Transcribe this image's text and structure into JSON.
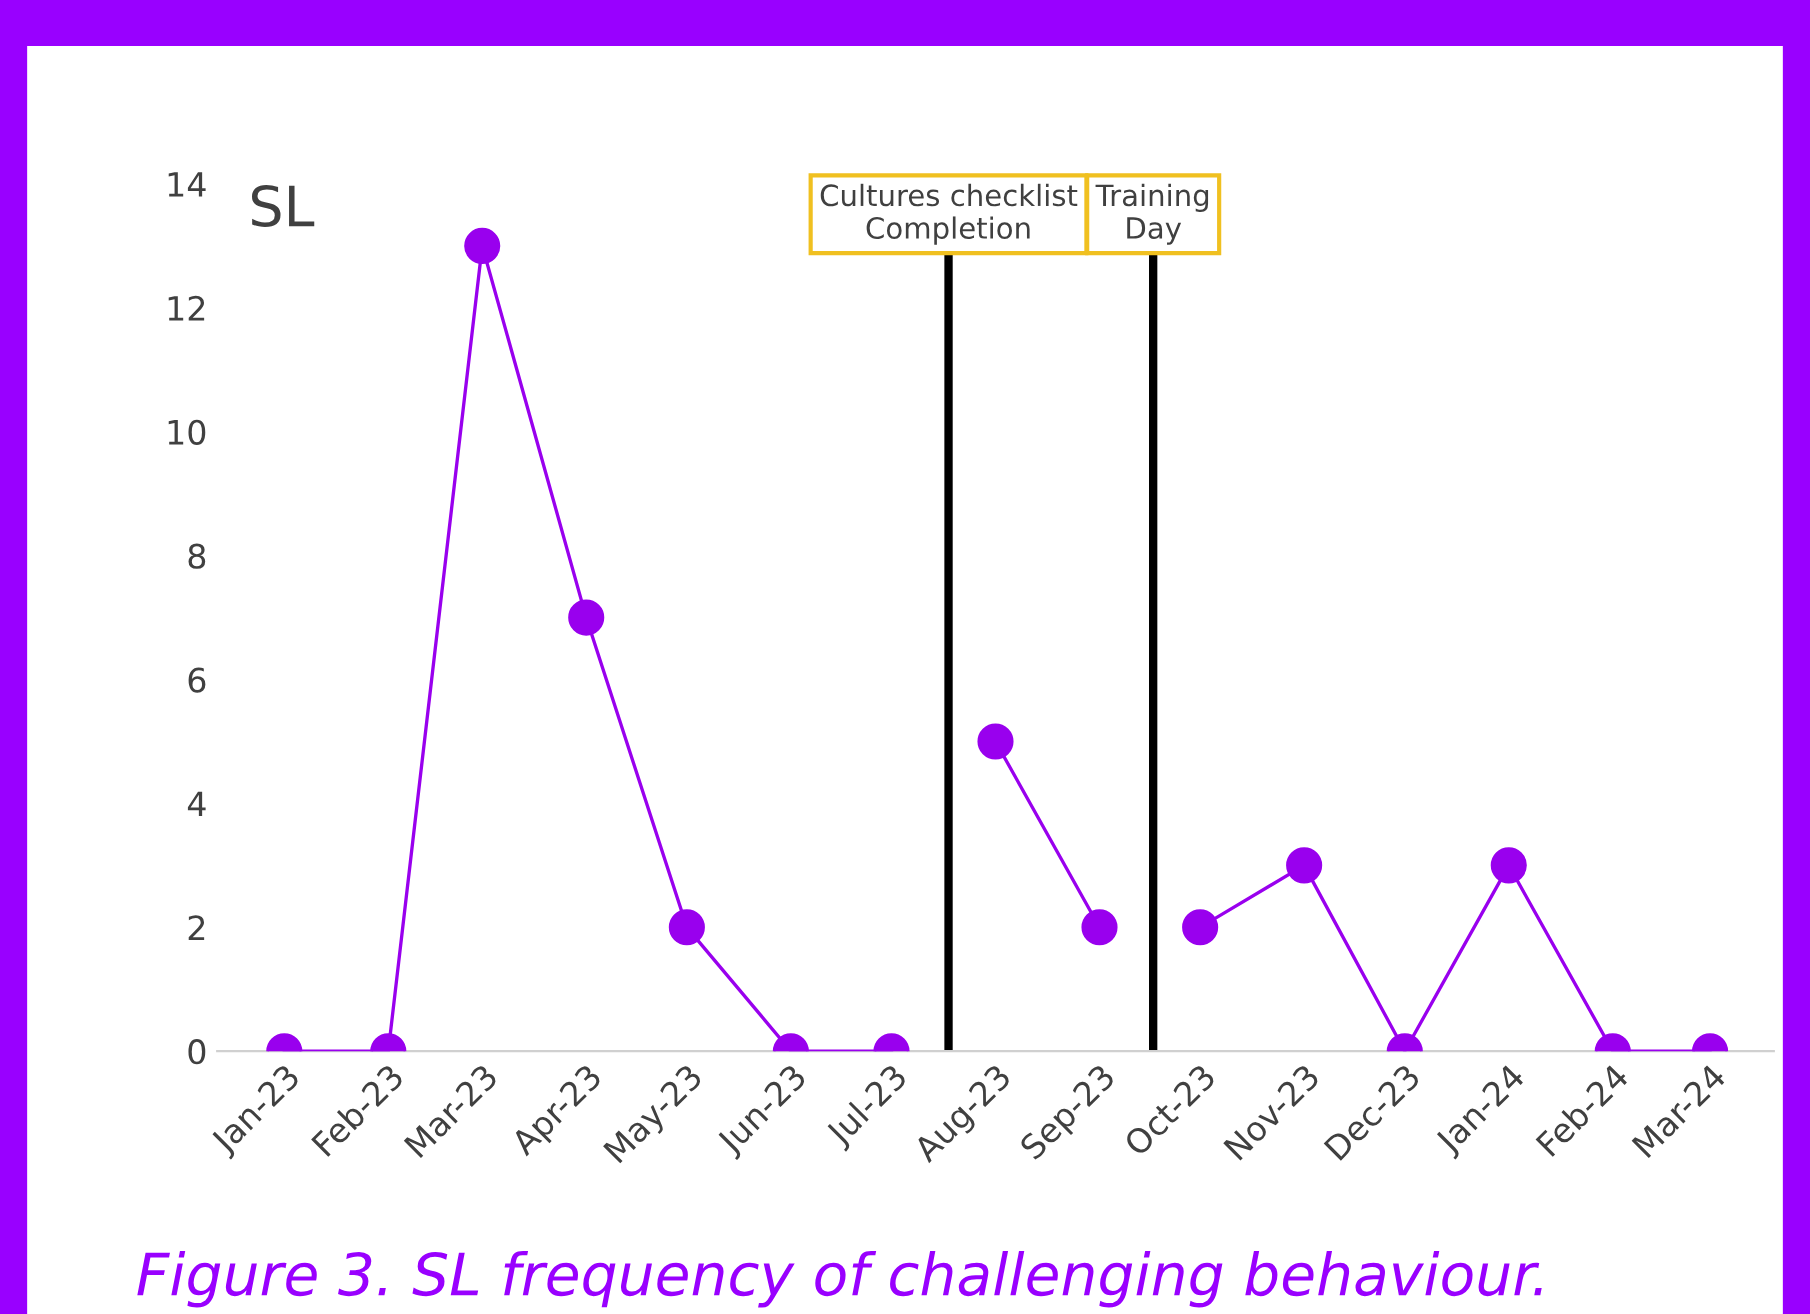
{
  "chart_data": {
    "type": "line",
    "title": "SL",
    "x": [
      "2023-01",
      "2023-02",
      "2023-03",
      "2023-04",
      "2023-05",
      "2023-06",
      "2023-07",
      "2023-08",
      "2023-09",
      "2023-10",
      "2023-11",
      "2023-12",
      "2024-01",
      "2024-02",
      "2024-03"
    ],
    "series": [
      {
        "color": "#9900ee",
        "values": [
          0,
          0,
          13,
          7,
          2,
          0,
          0,
          null,
          null,
          null,
          null,
          null,
          null,
          null,
          null
        ]
      },
      {
        "color": "#9900ee",
        "values": [
          null,
          null,
          null,
          null,
          null,
          null,
          null,
          5,
          2,
          null,
          null,
          null,
          null,
          null,
          null
        ]
      },
      {
        "color": "#9900ee",
        "values": [
          null,
          null,
          null,
          null,
          null,
          null,
          null,
          null,
          null,
          2,
          3,
          0,
          3,
          0,
          0
        ]
      }
    ],
    "xlim": [
      "2022-12-12",
      "2024-03-20"
    ],
    "xticks": [
      {
        "value": "2023-01",
        "label": "Jan-23"
      },
      {
        "value": "2023-02",
        "label": "Feb-23"
      },
      {
        "value": "2023-03",
        "label": "Mar-23"
      },
      {
        "value": "2023-04",
        "label": "Apr-23"
      },
      {
        "value": "2023-05",
        "label": "May-23"
      },
      {
        "value": "2023-06",
        "label": "Jun-23"
      },
      {
        "value": "2023-07",
        "label": "Jul-23"
      },
      {
        "value": "2023-08",
        "label": "Aug-23"
      },
      {
        "value": "2023-09",
        "label": "Sep-23"
      },
      {
        "value": "2023-10",
        "label": "Oct-23"
      },
      {
        "value": "2023-11",
        "label": "Nov-23"
      },
      {
        "value": "2023-12",
        "label": "Dec-23"
      },
      {
        "value": "2024-01",
        "label": "Jan-24"
      },
      {
        "value": "2024-02",
        "label": "Feb-24"
      },
      {
        "value": "2024-03",
        "label": "Mar-24"
      }
    ],
    "ylim": [
      0,
      14
    ],
    "yticks": [
      0,
      2,
      4,
      6,
      8,
      10,
      12,
      14
    ],
    "ref_lines": [
      {
        "axis": "x",
        "value": "2023-07-18",
        "label": "Cultures checklist\nCompletion",
        "color": "#000000"
      },
      {
        "axis": "x",
        "value": "2023-09-17",
        "label": "Training\nDay",
        "color": "#000000"
      }
    ],
    "marker": "circle",
    "line_style": "solid",
    "grid": false,
    "annotations": [
      "Figure 3. SL frequency of challenging behaviour."
    ]
  }
}
